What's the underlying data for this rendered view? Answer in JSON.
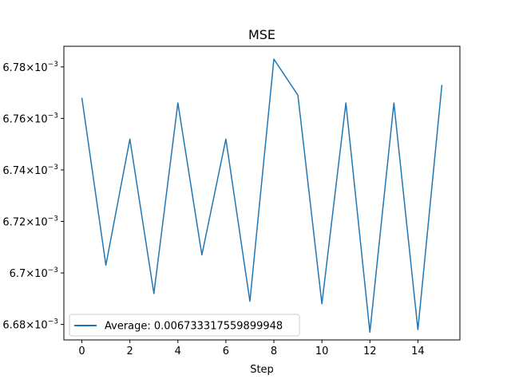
{
  "chart_data": {
    "type": "line",
    "title": "MSE",
    "xlabel": "Step",
    "ylabel": "",
    "x": [
      0,
      1,
      2,
      3,
      4,
      5,
      6,
      7,
      8,
      9,
      10,
      11,
      12,
      13,
      14,
      15
    ],
    "series": [
      {
        "name": "Average: 0.006733317559899948",
        "color": "#1f77b4",
        "values": [
          0.006768,
          0.006703,
          0.006752,
          0.006692,
          0.006766,
          0.006707,
          0.006752,
          0.006689,
          0.006783,
          0.006769,
          0.006688,
          0.006766,
          0.006677,
          0.006766,
          0.006678,
          0.006773
        ]
      }
    ],
    "xlim": [
      -0.75,
      15.75
    ],
    "ylim": [
      0.006674,
      0.006788
    ],
    "xticks": [
      0,
      2,
      4,
      6,
      8,
      10,
      12,
      14
    ],
    "xtick_labels": [
      "0",
      "2",
      "4",
      "6",
      "8",
      "10",
      "12",
      "14"
    ],
    "yticks": [
      0.00668,
      0.0067,
      0.00672,
      0.00674,
      0.00676,
      0.00678
    ],
    "ytick_labels": [
      "6.68",
      "6.7",
      "6.72",
      "6.74",
      "6.76",
      "6.78"
    ],
    "ytick_suffix_base": "10",
    "ytick_suffix_exp": "−3",
    "legend_position": "lower-left",
    "grid": false
  }
}
